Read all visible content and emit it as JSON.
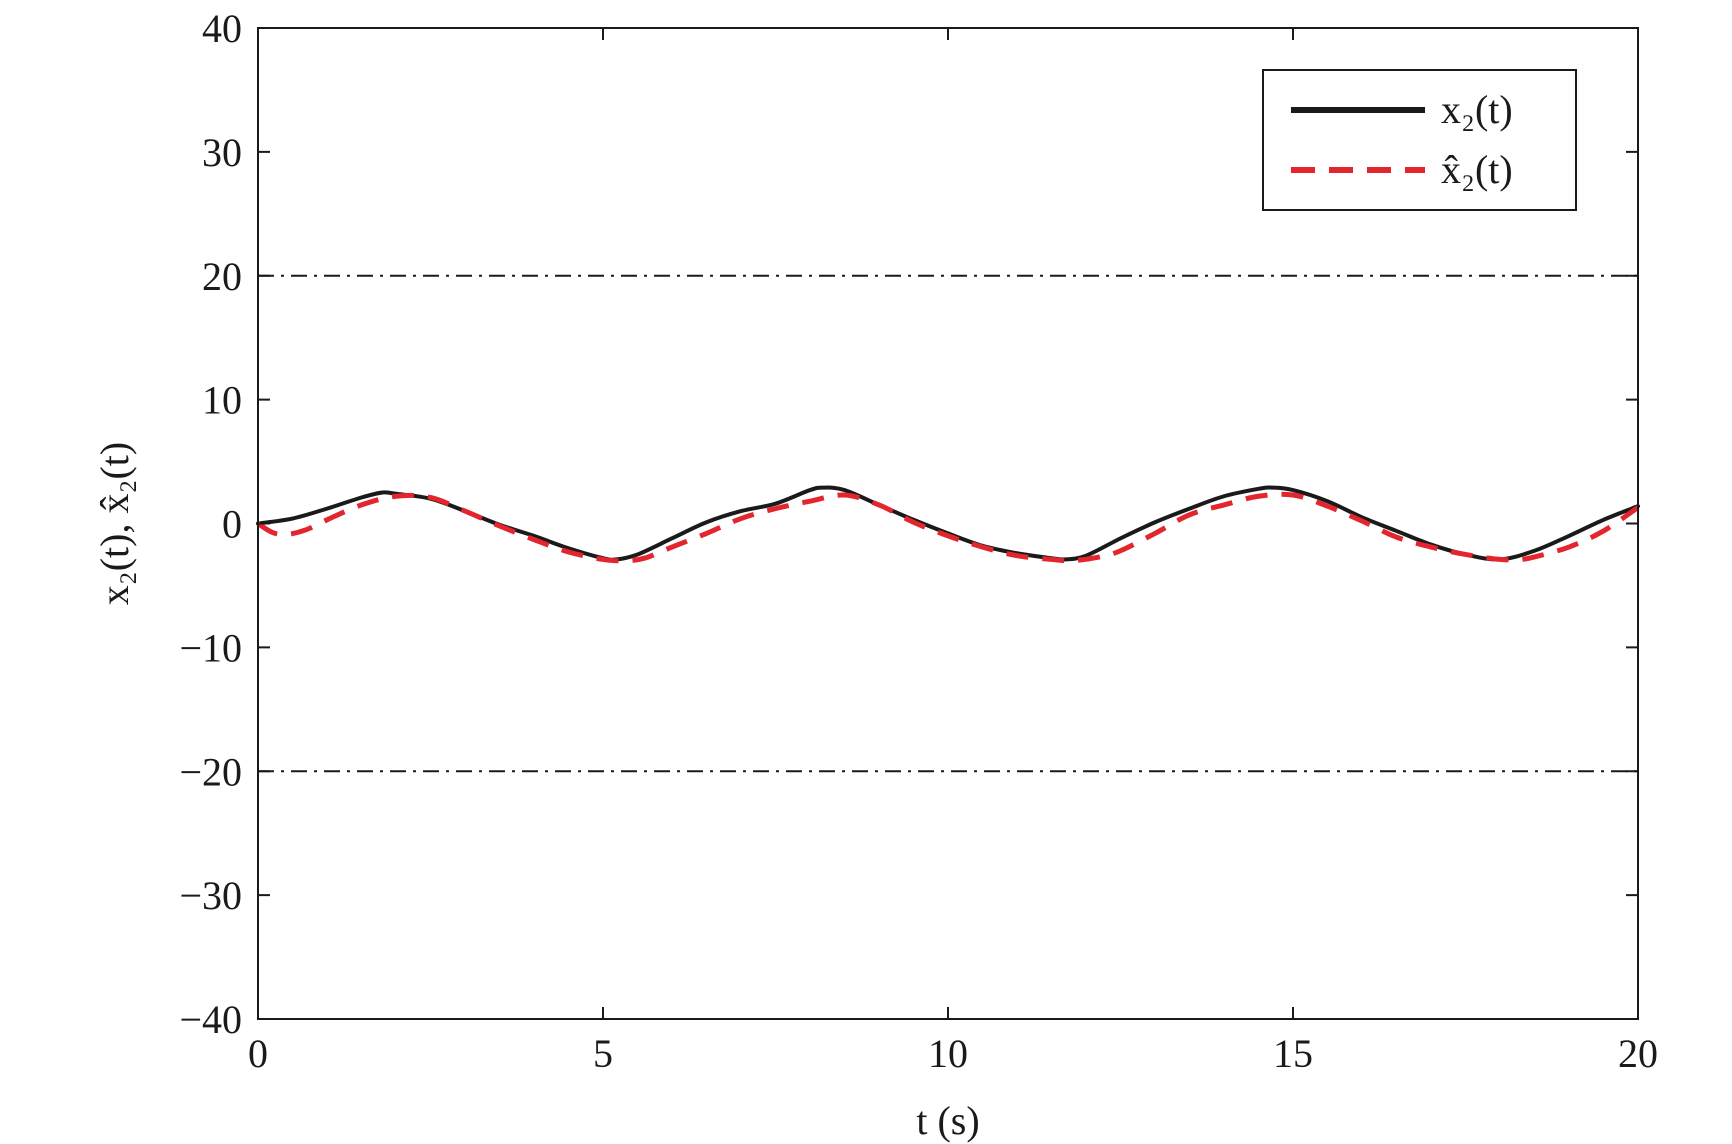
{
  "chart_data": {
    "type": "line",
    "xlabel": "t (s)",
    "ylabel": "x₂(t), x̂₂(t)",
    "xlim": [
      0,
      20
    ],
    "ylim": [
      -40,
      40
    ],
    "xticks": [
      0,
      5,
      10,
      15,
      20
    ],
    "yticks": [
      -40,
      -30,
      -20,
      -10,
      0,
      10,
      20,
      30,
      40
    ],
    "grid": false,
    "legend_placement": "top-right",
    "bounds": [
      {
        "y": 20,
        "style": "dash-dot",
        "color": "#1a1a1a"
      },
      {
        "y": -20,
        "style": "dash-dot",
        "color": "#1a1a1a"
      }
    ],
    "series": [
      {
        "name": "x₂(t)",
        "color": "#1a1a1a",
        "style": "solid",
        "x": [
          0,
          0.5,
          1,
          1.5,
          1.8,
          2,
          2.5,
          3,
          3.5,
          4,
          4.5,
          5,
          5.2,
          5.5,
          6,
          6.5,
          7,
          7.5,
          8,
          8.2,
          8.5,
          9,
          9.5,
          10,
          10.5,
          11,
          11.5,
          11.7,
          12,
          12.5,
          13,
          13.5,
          14,
          14.5,
          14.7,
          15,
          15.5,
          16,
          16.5,
          17,
          17.5,
          18,
          18.5,
          19,
          19.5,
          20
        ],
        "y": [
          0,
          0.4,
          1.2,
          2.1,
          2.5,
          2.4,
          2.0,
          1.0,
          -0.1,
          -1.0,
          -2.0,
          -2.8,
          -2.9,
          -2.5,
          -1.2,
          0.1,
          1.0,
          1.6,
          2.7,
          2.9,
          2.7,
          1.5,
          0.3,
          -0.8,
          -1.8,
          -2.4,
          -2.8,
          -2.9,
          -2.6,
          -1.2,
          0.1,
          1.2,
          2.2,
          2.8,
          2.9,
          2.7,
          1.8,
          0.5,
          -0.6,
          -1.7,
          -2.5,
          -2.9,
          -2.2,
          -1.0,
          0.3,
          1.4
        ]
      },
      {
        "name": "x̂₂(t)",
        "color": "#e3262e",
        "style": "dashed",
        "x": [
          0,
          0.2,
          0.4,
          0.7,
          1,
          1.5,
          2,
          2.5,
          3,
          3.5,
          4,
          4.5,
          5,
          5.3,
          5.6,
          6,
          6.5,
          7,
          7.5,
          8,
          8.5,
          9,
          9.5,
          10,
          10.5,
          11,
          11.5,
          11.8,
          12.2,
          12.5,
          13,
          13.5,
          14,
          14.5,
          15,
          15.5,
          16,
          16.5,
          17,
          17.5,
          18,
          18.3,
          18.5,
          19,
          19.5,
          20
        ],
        "y": [
          0,
          -0.7,
          -0.9,
          -0.5,
          0.3,
          1.5,
          2.2,
          2.1,
          1.0,
          -0.2,
          -1.3,
          -2.3,
          -2.9,
          -3.0,
          -2.8,
          -1.9,
          -0.8,
          0.4,
          1.2,
          1.8,
          2.3,
          1.5,
          0.1,
          -1.0,
          -1.9,
          -2.6,
          -2.9,
          -3.0,
          -2.7,
          -2.2,
          -0.8,
          0.7,
          1.5,
          2.2,
          2.3,
          1.4,
          0.2,
          -1.1,
          -1.9,
          -2.5,
          -2.9,
          -2.9,
          -2.7,
          -1.9,
          -0.6,
          1.3
        ]
      }
    ]
  }
}
